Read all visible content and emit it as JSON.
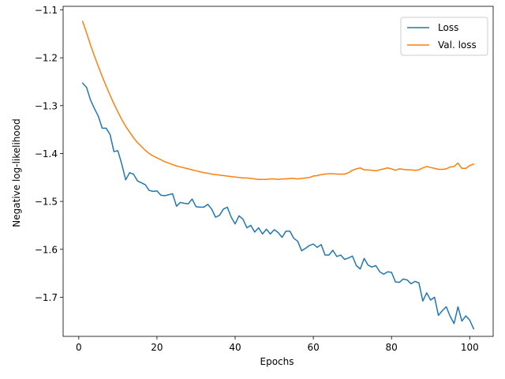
{
  "chart_data": {
    "type": "line",
    "title": "",
    "xlabel": "Epochs",
    "ylabel": "Negative log-likelihood",
    "xlim": [
      -4,
      106
    ],
    "ylim": [
      -1.7818,
      -1.0925
    ],
    "xticks": [
      0,
      20,
      40,
      60,
      80,
      100
    ],
    "yticks": [
      -1.7,
      -1.6,
      -1.5,
      -1.4,
      -1.3,
      -1.2,
      -1.1
    ],
    "xtick_labels": [
      "0",
      "20",
      "40",
      "60",
      "80",
      "100"
    ],
    "ytick_labels": [
      "−1.7",
      "−1.6",
      "−1.5",
      "−1.4",
      "−1.3",
      "−1.2",
      "−1.1"
    ],
    "grid": false,
    "legend_position": "top-right",
    "x_start": 1,
    "series": [
      {
        "name": "Loss",
        "color": "#1f77b4",
        "values": [
          -1.253,
          -1.262,
          -1.288,
          -1.306,
          -1.322,
          -1.347,
          -1.347,
          -1.36,
          -1.396,
          -1.394,
          -1.422,
          -1.455,
          -1.44,
          -1.443,
          -1.457,
          -1.461,
          -1.465,
          -1.477,
          -1.479,
          -1.478,
          -1.487,
          -1.488,
          -1.486,
          -1.484,
          -1.51,
          -1.502,
          -1.504,
          -1.505,
          -1.495,
          -1.511,
          -1.512,
          -1.512,
          -1.506,
          -1.516,
          -1.533,
          -1.529,
          -1.516,
          -1.512,
          -1.533,
          -1.547,
          -1.53,
          -1.537,
          -1.555,
          -1.55,
          -1.564,
          -1.555,
          -1.568,
          -1.558,
          -1.568,
          -1.559,
          -1.565,
          -1.575,
          -1.562,
          -1.562,
          -1.577,
          -1.583,
          -1.603,
          -1.598,
          -1.592,
          -1.589,
          -1.596,
          -1.59,
          -1.612,
          -1.612,
          -1.602,
          -1.615,
          -1.612,
          -1.621,
          -1.618,
          -1.614,
          -1.634,
          -1.641,
          -1.619,
          -1.633,
          -1.637,
          -1.634,
          -1.647,
          -1.652,
          -1.647,
          -1.648,
          -1.668,
          -1.669,
          -1.662,
          -1.664,
          -1.672,
          -1.667,
          -1.67,
          -1.708,
          -1.691,
          -1.706,
          -1.7,
          -1.738,
          -1.728,
          -1.72,
          -1.74,
          -1.755,
          -1.72,
          -1.75,
          -1.739,
          -1.748,
          -1.766
        ]
      },
      {
        "name": "Val. loss",
        "color": "#ff7f0e",
        "values": [
          -1.124,
          -1.148,
          -1.173,
          -1.196,
          -1.218,
          -1.239,
          -1.259,
          -1.278,
          -1.296,
          -1.313,
          -1.329,
          -1.343,
          -1.355,
          -1.367,
          -1.377,
          -1.385,
          -1.393,
          -1.4,
          -1.405,
          -1.409,
          -1.413,
          -1.417,
          -1.42,
          -1.423,
          -1.426,
          -1.428,
          -1.43,
          -1.432,
          -1.434,
          -1.436,
          -1.438,
          -1.44,
          -1.441,
          -1.443,
          -1.444,
          -1.445,
          -1.446,
          -1.447,
          -1.448,
          -1.449,
          -1.45,
          -1.451,
          -1.451,
          -1.452,
          -1.453,
          -1.454,
          -1.454,
          -1.454,
          -1.453,
          -1.453,
          -1.454,
          -1.453,
          -1.453,
          -1.452,
          -1.452,
          -1.453,
          -1.452,
          -1.451,
          -1.45,
          -1.447,
          -1.446,
          -1.444,
          -1.443,
          -1.442,
          -1.442,
          -1.443,
          -1.443,
          -1.443,
          -1.44,
          -1.435,
          -1.432,
          -1.43,
          -1.434,
          -1.434,
          -1.435,
          -1.436,
          -1.434,
          -1.432,
          -1.43,
          -1.432,
          -1.435,
          -1.432,
          -1.433,
          -1.434,
          -1.434,
          -1.435,
          -1.434,
          -1.43,
          -1.427,
          -1.429,
          -1.431,
          -1.433,
          -1.433,
          -1.432,
          -1.428,
          -1.427,
          -1.42,
          -1.431,
          -1.431,
          -1.425,
          -1.422
        ]
      }
    ]
  }
}
